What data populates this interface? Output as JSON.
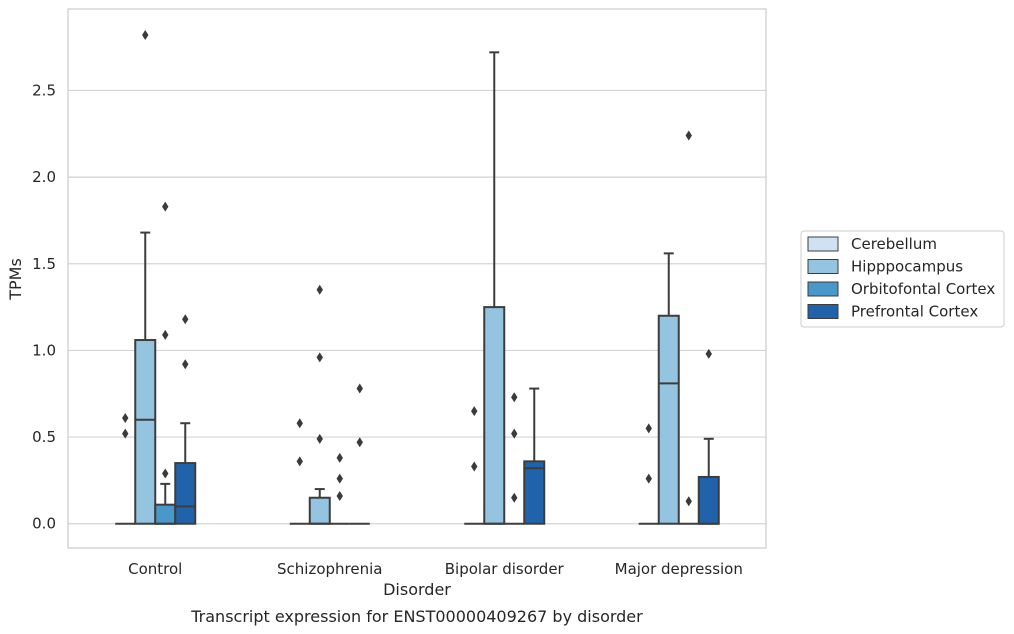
{
  "chart_data": {
    "type": "box",
    "caption": "Transcript expression for ENST00000409267 by disorder",
    "xlabel": "Disorder",
    "ylabel": "TPMs",
    "ylim": [
      -0.14,
      2.97
    ],
    "yticks": [
      "0.0",
      "0.5",
      "1.0",
      "1.5",
      "2.0",
      "2.5"
    ],
    "ytick_values": [
      0,
      0.5,
      1.0,
      1.5,
      2.0,
      2.5
    ],
    "grid": "horizontal",
    "legend_position": "right",
    "categories": [
      "Control",
      "Schizophrenia",
      "Bipolar disorder",
      "Major depression"
    ],
    "series": [
      {
        "name": "Cerebellum",
        "color": "#d0e1f2",
        "boxes": [
          {
            "min": 0,
            "q1": 0,
            "median": 0,
            "q3": 0,
            "max": 0,
            "outliers": [
              0.52,
              0.61
            ]
          },
          {
            "min": 0,
            "q1": 0,
            "median": 0,
            "q3": 0,
            "max": 0,
            "outliers": [
              0.36,
              0.58
            ]
          },
          {
            "min": 0,
            "q1": 0,
            "median": 0,
            "q3": 0,
            "max": 0,
            "outliers": [
              0.33,
              0.65
            ]
          },
          {
            "min": 0,
            "q1": 0,
            "median": 0,
            "q3": 0,
            "max": 0,
            "outliers": [
              0.26,
              0.55
            ]
          }
        ]
      },
      {
        "name": "Hipppocampus",
        "color": "#94c4df",
        "boxes": [
          {
            "min": 0,
            "q1": 0,
            "median": 0.6,
            "q3": 1.06,
            "max": 1.68,
            "outliers": [
              2.82
            ]
          },
          {
            "min": 0,
            "q1": 0,
            "median": 0,
            "q3": 0.15,
            "max": 0.2,
            "outliers": [
              0.49,
              0.96,
              1.35
            ]
          },
          {
            "min": 0,
            "q1": 0,
            "median": 0,
            "q3": 1.25,
            "max": 2.72,
            "outliers": []
          },
          {
            "min": 0,
            "q1": 0,
            "median": 0.81,
            "q3": 1.2,
            "max": 1.56,
            "outliers": []
          }
        ]
      },
      {
        "name": "Orbitofontal Cortex",
        "color": "#4a98c9",
        "boxes": [
          {
            "min": 0,
            "q1": 0,
            "median": 0,
            "q3": 0.11,
            "max": 0.23,
            "outliers": [
              0.29,
              1.09,
              1.83
            ]
          },
          {
            "min": 0,
            "q1": 0,
            "median": 0,
            "q3": 0,
            "max": 0,
            "outliers": [
              0.16,
              0.26,
              0.38
            ]
          },
          {
            "min": 0,
            "q1": 0,
            "median": 0,
            "q3": 0,
            "max": 0,
            "outliers": [
              0.15,
              0.52,
              0.73
            ]
          },
          {
            "min": 0,
            "q1": 0,
            "median": 0,
            "q3": 0,
            "max": 0,
            "outliers": [
              0.13,
              2.24
            ]
          }
        ]
      },
      {
        "name": "Prefrontal Cortex",
        "color": "#2163aa",
        "boxes": [
          {
            "min": 0,
            "q1": 0,
            "median": 0.1,
            "q3": 0.35,
            "max": 0.58,
            "outliers": [
              0.92,
              1.18
            ]
          },
          {
            "min": 0,
            "q1": 0,
            "median": 0,
            "q3": 0,
            "max": 0,
            "outliers": [
              0.47,
              0.78
            ]
          },
          {
            "min": 0,
            "q1": 0,
            "median": 0.32,
            "q3": 0.36,
            "max": 0.78,
            "outliers": []
          },
          {
            "min": 0,
            "q1": 0,
            "median": 0,
            "q3": 0.27,
            "max": 0.49,
            "outliers": [
              0.98
            ]
          }
        ]
      }
    ]
  }
}
